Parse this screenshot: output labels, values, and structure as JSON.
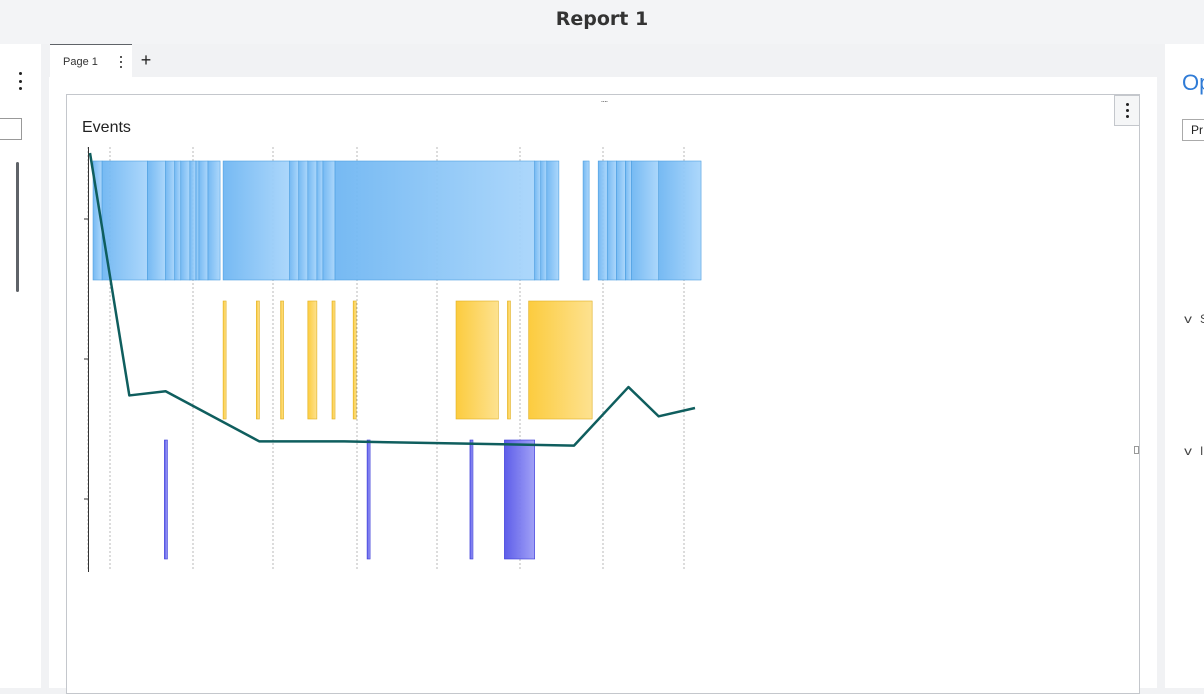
{
  "report": {
    "title": "Report 1"
  },
  "tabs": [
    {
      "label": "Page 1"
    }
  ],
  "icons": {
    "tab_add": "plus-icon",
    "kebab": "vertical-dots-icon",
    "drag": "drag-handle-icon",
    "chevron": "chevron-down-icon"
  },
  "widget": {
    "title": "Events",
    "drag_glyph": "····"
  },
  "right_panel": {
    "title_partial": "Op",
    "chip_partial": "Pr",
    "section1_partial": "S",
    "section2_partial": "I",
    "chevron_glyph": "v"
  },
  "colors": {
    "blue_bars": "#7fc0f5",
    "yellow_bars": "#fcc934",
    "violet_bars": "#6666ee",
    "line": "#0f5e5e",
    "accent": "#2f7bd6"
  },
  "chart_data": {
    "type": "timeline",
    "title": "Events",
    "xlabel": "",
    "ylabel": "",
    "x_domain": [
      0,
      100
    ],
    "lanes": [
      "blue",
      "yellow",
      "violet"
    ],
    "series": [
      {
        "lane": 0,
        "color": "#7fc0f5",
        "intervals": [
          [
            0.5,
            2
          ],
          [
            2,
            9.5
          ],
          [
            9.5,
            12.5
          ],
          [
            12.5,
            14
          ],
          [
            14,
            15
          ],
          [
            15,
            16.5
          ],
          [
            16.5,
            17.5
          ],
          [
            17.5,
            18
          ],
          [
            18,
            19.5
          ],
          [
            19.5,
            21.5
          ],
          [
            22,
            33
          ],
          [
            33,
            34.5
          ],
          [
            34.5,
            36
          ],
          [
            36,
            37.5
          ],
          [
            37.5,
            38.5
          ],
          [
            38.5,
            40.5
          ],
          [
            40.5,
            73.5
          ],
          [
            73.5,
            74.5
          ],
          [
            74.5,
            75.5
          ],
          [
            75.5,
            77.5
          ],
          [
            81.5,
            82.5
          ],
          [
            84,
            85.5
          ],
          [
            85.5,
            87
          ],
          [
            87,
            88.5
          ],
          [
            88.5,
            89.5
          ],
          [
            89.5,
            94
          ],
          [
            94,
            101
          ]
        ]
      },
      {
        "lane": 1,
        "color": "#fcc934",
        "intervals": [
          [
            22,
            22.5
          ],
          [
            27.5,
            28
          ],
          [
            31.5,
            32
          ],
          [
            36,
            37.5
          ],
          [
            40,
            40.5
          ],
          [
            43.5,
            44
          ],
          [
            60.5,
            67.5
          ],
          [
            69,
            69.5
          ],
          [
            72.5,
            83
          ]
        ]
      },
      {
        "lane": 2,
        "color": "#6666ee",
        "intervals": [
          [
            12.3,
            12.8
          ],
          [
            45.8,
            46.3
          ],
          [
            62.8,
            63.3
          ],
          [
            68.5,
            73.5
          ]
        ]
      },
      {
        "type": "line",
        "color": "#0f5e5e",
        "x": [
          0,
          6.5,
          12.5,
          28,
          42,
          80,
          89,
          94,
          100
        ],
        "y": [
          100,
          42,
          43,
          31,
          31,
          30,
          44,
          37,
          39
        ]
      }
    ],
    "grid": {
      "vertical_dotted": true
    }
  }
}
